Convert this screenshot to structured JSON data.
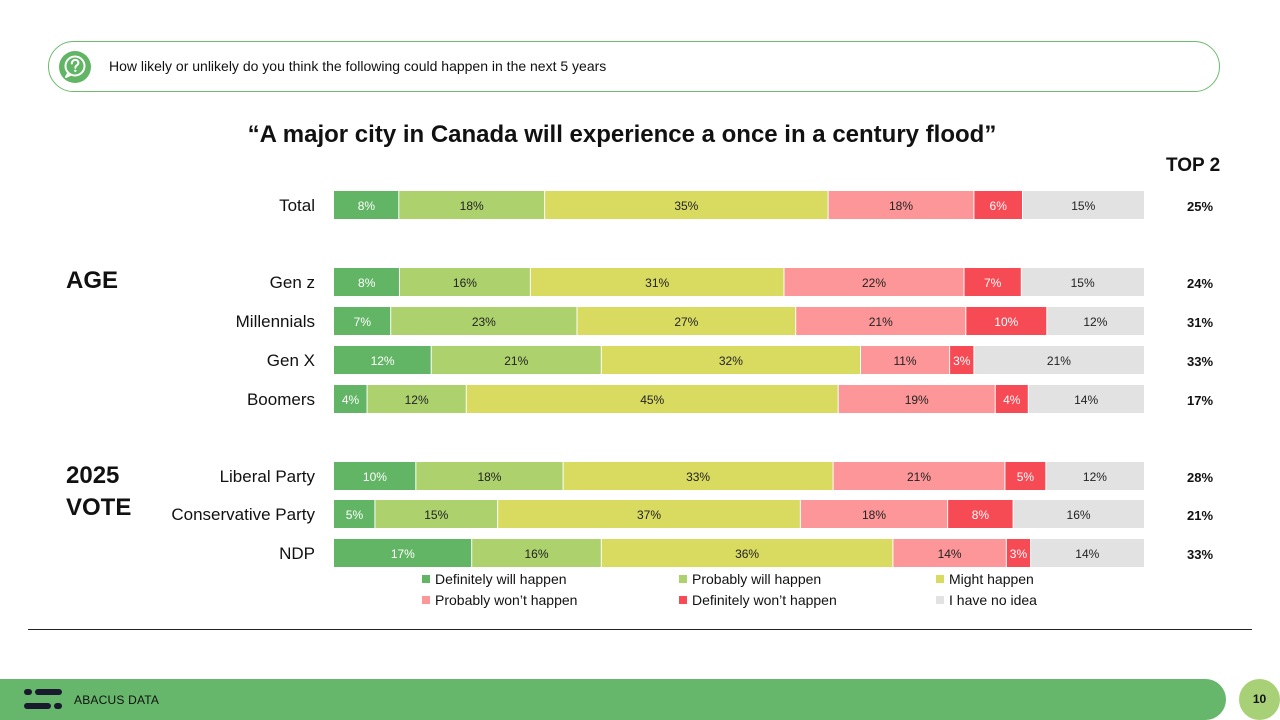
{
  "question": {
    "icon": "question-chat-icon",
    "text": "How likely or unlikely do you think the following could happen in the next 5 years"
  },
  "chart_data": {
    "type": "bar",
    "orientation": "horizontal",
    "stacked": true,
    "normalized_percent": true,
    "title": "“A major city in Canada will experience a once in a century flood”",
    "top2_header": "TOP 2",
    "groups": [
      {
        "label": "",
        "rows": [
          "Total"
        ]
      },
      {
        "label": "AGE",
        "rows": [
          "Gen z",
          "Millennials",
          "Gen X",
          "Boomers"
        ]
      },
      {
        "label": "2025 VOTE",
        "rows": [
          "Liberal Party",
          "Conservative Party",
          "NDP"
        ]
      }
    ],
    "categories": [
      "Total",
      "Gen z",
      "Millennials",
      "Gen X",
      "Boomers",
      "Liberal Party",
      "Conservative Party",
      "NDP"
    ],
    "series": [
      {
        "name": "Definitely will happen",
        "color": "#62b565",
        "values": [
          8,
          8,
          7,
          12,
          4,
          10,
          5,
          17
        ]
      },
      {
        "name": "Probably will happen",
        "color": "#acd16d",
        "values": [
          18,
          16,
          23,
          21,
          12,
          18,
          15,
          16
        ]
      },
      {
        "name": "Might happen",
        "color": "#d9da60",
        "values": [
          35,
          31,
          27,
          32,
          45,
          33,
          37,
          36
        ]
      },
      {
        "name": "Probably won’t happen",
        "color": "#fd9698",
        "values": [
          18,
          22,
          21,
          11,
          19,
          21,
          18,
          14
        ]
      },
      {
        "name": "Definitely won’t happen",
        "color": "#f64a55",
        "values": [
          6,
          7,
          10,
          3,
          4,
          5,
          8,
          3
        ]
      },
      {
        "name": "I have no idea",
        "color": "#e2e2e2",
        "values": [
          15,
          15,
          12,
          21,
          14,
          12,
          16,
          14
        ]
      }
    ],
    "top2": [
      "25%",
      "24%",
      "31%",
      "33%",
      "17%",
      "28%",
      "21%",
      "33%"
    ],
    "legend_position": "bottom"
  },
  "footer": {
    "brand": "ABACUS DATA",
    "logo_icon": "abacus-logo-icon",
    "page_number": "10"
  }
}
